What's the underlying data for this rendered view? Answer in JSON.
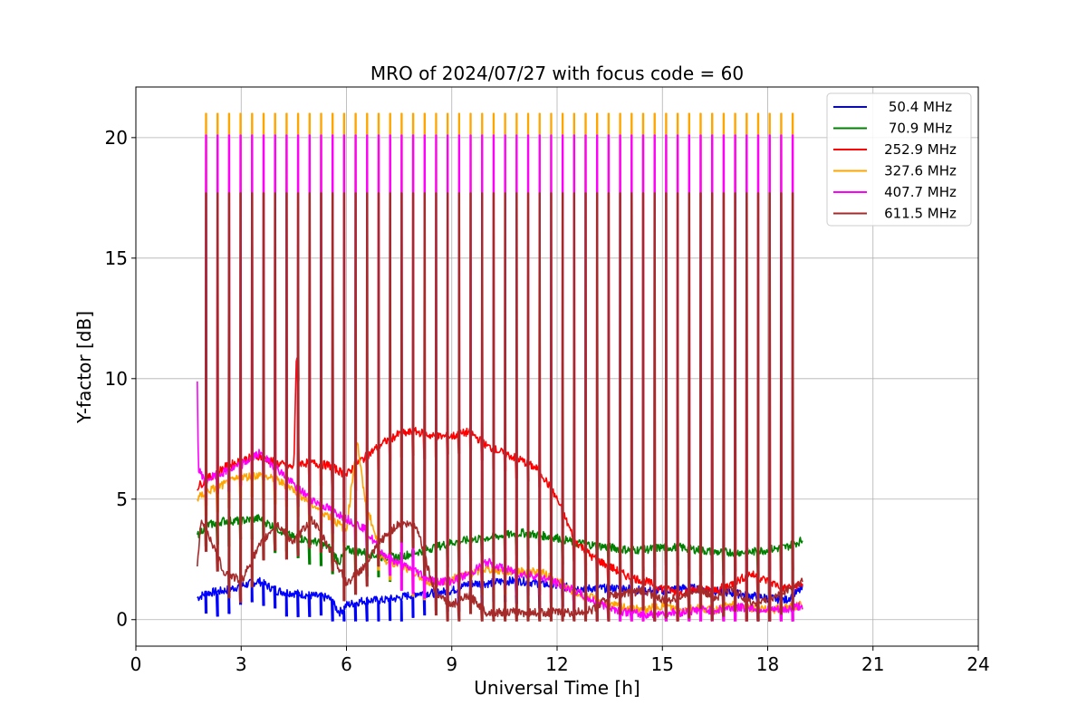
{
  "chart_data": {
    "type": "line",
    "title": "MRO of 2024/07/27 with focus code = 60",
    "xlabel": "Universal Time [h]",
    "ylabel": "Y-factor [dB]",
    "xlim": [
      0,
      24
    ],
    "ylim": [
      -1.1,
      22.1
    ],
    "xticks": [
      0,
      3,
      6,
      9,
      12,
      15,
      18,
      21,
      24
    ],
    "yticks": [
      0,
      5,
      10,
      15,
      20
    ],
    "grid": true,
    "legend_position": "top-right",
    "calibration_pulses": {
      "start_h": 1.98,
      "end_h": 19.02,
      "count": 53,
      "peaks_dB": {
        "327.6 MHz": 21.0,
        "407.7 MHz": 20.1,
        "611.5 MHz": 17.7
      }
    },
    "series": [
      {
        "name": "50.4 MHz",
        "color": "#0000ff",
        "points": [
          [
            1.75,
            0.9
          ],
          [
            2.0,
            1.1
          ],
          [
            2.5,
            1.2
          ],
          [
            3.0,
            1.4
          ],
          [
            3.5,
            1.6
          ],
          [
            4.0,
            1.2
          ],
          [
            4.5,
            1.1
          ],
          [
            5.0,
            1.0
          ],
          [
            5.5,
            0.9
          ],
          [
            5.8,
            0.3
          ],
          [
            6.0,
            0.6
          ],
          [
            6.5,
            0.8
          ],
          [
            7.0,
            0.8
          ],
          [
            7.5,
            0.9
          ],
          [
            8.0,
            1.1
          ],
          [
            8.5,
            1.1
          ],
          [
            9.0,
            1.2
          ],
          [
            9.5,
            1.5
          ],
          [
            10.0,
            1.5
          ],
          [
            10.5,
            1.6
          ],
          [
            11.0,
            1.6
          ],
          [
            11.5,
            1.5
          ],
          [
            12.0,
            1.4
          ],
          [
            12.5,
            1.3
          ],
          [
            13.0,
            1.3
          ],
          [
            13.5,
            1.3
          ],
          [
            14.0,
            1.3
          ],
          [
            14.5,
            1.2
          ],
          [
            15.0,
            1.2
          ],
          [
            15.5,
            1.3
          ],
          [
            16.0,
            1.3
          ],
          [
            16.5,
            1.2
          ],
          [
            17.0,
            1.1
          ],
          [
            17.5,
            1.0
          ],
          [
            18.0,
            0.9
          ],
          [
            18.5,
            0.8
          ],
          [
            19.0,
            1.3
          ]
        ]
      },
      {
        "name": "70.9 MHz",
        "color": "#008000",
        "points": [
          [
            1.75,
            3.5
          ],
          [
            2.0,
            3.9
          ],
          [
            2.5,
            4.1
          ],
          [
            3.0,
            4.1
          ],
          [
            3.5,
            4.2
          ],
          [
            4.0,
            3.8
          ],
          [
            4.5,
            3.4
          ],
          [
            5.0,
            3.3
          ],
          [
            5.5,
            3.0
          ],
          [
            5.8,
            2.4
          ],
          [
            6.0,
            2.9
          ],
          [
            6.5,
            2.8
          ],
          [
            7.0,
            2.6
          ],
          [
            7.5,
            2.6
          ],
          [
            8.0,
            2.8
          ],
          [
            8.5,
            3.0
          ],
          [
            9.0,
            3.2
          ],
          [
            9.5,
            3.3
          ],
          [
            10.0,
            3.4
          ],
          [
            10.5,
            3.5
          ],
          [
            11.0,
            3.6
          ],
          [
            11.5,
            3.5
          ],
          [
            12.0,
            3.4
          ],
          [
            12.5,
            3.2
          ],
          [
            13.0,
            3.1
          ],
          [
            13.5,
            3.0
          ],
          [
            14.0,
            2.9
          ],
          [
            14.5,
            2.9
          ],
          [
            15.0,
            3.0
          ],
          [
            15.5,
            3.0
          ],
          [
            16.0,
            2.9
          ],
          [
            16.5,
            2.8
          ],
          [
            17.0,
            2.8
          ],
          [
            17.5,
            2.8
          ],
          [
            18.0,
            2.9
          ],
          [
            18.5,
            3.0
          ],
          [
            19.0,
            3.3
          ]
        ]
      },
      {
        "name": "252.9 MHz",
        "color": "#ff0000",
        "points": [
          [
            1.75,
            5.5
          ],
          [
            2.0,
            5.8
          ],
          [
            2.5,
            6.3
          ],
          [
            3.0,
            6.6
          ],
          [
            3.5,
            6.8
          ],
          [
            4.0,
            6.5
          ],
          [
            4.5,
            6.3
          ],
          [
            4.58,
            11.4
          ],
          [
            4.65,
            6.5
          ],
          [
            5.0,
            6.5
          ],
          [
            5.5,
            6.4
          ],
          [
            6.0,
            6.0
          ],
          [
            6.3,
            6.5
          ],
          [
            6.5,
            6.7
          ],
          [
            7.0,
            7.3
          ],
          [
            7.5,
            7.7
          ],
          [
            8.0,
            7.8
          ],
          [
            8.5,
            7.6
          ],
          [
            9.0,
            7.6
          ],
          [
            9.5,
            7.8
          ],
          [
            10.0,
            7.2
          ],
          [
            10.5,
            6.9
          ],
          [
            11.0,
            6.6
          ],
          [
            11.5,
            6.2
          ],
          [
            12.0,
            5.0
          ],
          [
            12.5,
            3.3
          ],
          [
            13.0,
            2.6
          ],
          [
            13.5,
            2.2
          ],
          [
            14.0,
            1.8
          ],
          [
            14.5,
            1.6
          ],
          [
            15.0,
            1.3
          ],
          [
            15.5,
            1.1
          ],
          [
            16.0,
            1.3
          ],
          [
            16.5,
            1.2
          ],
          [
            17.0,
            1.5
          ],
          [
            17.5,
            1.9
          ],
          [
            18.0,
            1.6
          ],
          [
            18.5,
            1.3
          ],
          [
            19.0,
            1.5
          ]
        ]
      },
      {
        "name": "327.6 MHz",
        "color": "#ffa500",
        "points": [
          [
            1.75,
            5.0
          ],
          [
            2.0,
            5.3
          ],
          [
            2.5,
            5.6
          ],
          [
            3.0,
            5.9
          ],
          [
            3.5,
            6.0
          ],
          [
            4.0,
            5.8
          ],
          [
            4.5,
            5.4
          ],
          [
            5.0,
            4.8
          ],
          [
            5.5,
            4.3
          ],
          [
            6.0,
            3.7
          ],
          [
            6.3,
            7.5
          ],
          [
            6.5,
            5.2
          ],
          [
            7.0,
            2.5
          ],
          [
            7.5,
            2.3
          ],
          [
            8.0,
            1.8
          ],
          [
            8.5,
            1.5
          ],
          [
            9.0,
            1.7
          ],
          [
            9.5,
            1.9
          ],
          [
            10.0,
            2.1
          ],
          [
            10.5,
            2.0
          ],
          [
            11.0,
            2.0
          ],
          [
            11.5,
            2.0
          ],
          [
            12.0,
            1.6
          ],
          [
            12.5,
            1.1
          ],
          [
            13.0,
            0.9
          ],
          [
            13.5,
            0.6
          ],
          [
            14.0,
            0.5
          ],
          [
            14.5,
            0.4
          ],
          [
            15.0,
            0.6
          ],
          [
            15.5,
            0.4
          ],
          [
            16.0,
            0.5
          ],
          [
            16.5,
            0.4
          ],
          [
            17.0,
            0.6
          ],
          [
            17.5,
            0.5
          ],
          [
            18.0,
            0.4
          ],
          [
            18.5,
            0.5
          ],
          [
            19.0,
            0.6
          ]
        ]
      },
      {
        "name": "407.7 MHz",
        "color": "#ff00ff",
        "points": [
          [
            1.75,
            9.8
          ],
          [
            1.78,
            6.2
          ],
          [
            2.0,
            5.8
          ],
          [
            2.5,
            6.1
          ],
          [
            3.0,
            6.4
          ],
          [
            3.5,
            6.9
          ],
          [
            4.0,
            6.3
          ],
          [
            4.5,
            5.6
          ],
          [
            5.0,
            5.0
          ],
          [
            5.5,
            4.6
          ],
          [
            6.0,
            4.2
          ],
          [
            6.5,
            3.8
          ],
          [
            7.0,
            2.8
          ],
          [
            7.5,
            2.3
          ],
          [
            8.0,
            2.0
          ],
          [
            8.5,
            1.6
          ],
          [
            9.0,
            1.6
          ],
          [
            9.5,
            1.9
          ],
          [
            10.0,
            2.4
          ],
          [
            10.5,
            2.1
          ],
          [
            11.0,
            1.9
          ],
          [
            11.5,
            1.8
          ],
          [
            12.0,
            1.5
          ],
          [
            12.5,
            1.2
          ],
          [
            13.0,
            0.8
          ],
          [
            13.5,
            0.5
          ],
          [
            14.0,
            0.3
          ],
          [
            14.5,
            0.2
          ],
          [
            15.0,
            0.3
          ],
          [
            15.5,
            0.3
          ],
          [
            16.0,
            0.4
          ],
          [
            16.5,
            0.4
          ],
          [
            17.0,
            0.5
          ],
          [
            17.5,
            0.5
          ],
          [
            18.0,
            0.4
          ],
          [
            18.5,
            0.4
          ],
          [
            19.0,
            0.6
          ]
        ]
      },
      {
        "name": "611.5 MHz",
        "color": "#a52a2a",
        "points": [
          [
            1.75,
            2.1
          ],
          [
            1.85,
            4.0
          ],
          [
            2.0,
            3.8
          ],
          [
            2.5,
            2.0
          ],
          [
            3.0,
            1.6
          ],
          [
            3.5,
            3.0
          ],
          [
            4.0,
            4.0
          ],
          [
            4.5,
            3.2
          ],
          [
            5.0,
            4.2
          ],
          [
            5.5,
            3.0
          ],
          [
            6.0,
            1.5
          ],
          [
            6.5,
            2.2
          ],
          [
            7.0,
            3.3
          ],
          [
            7.5,
            4.0
          ],
          [
            8.0,
            3.9
          ],
          [
            8.5,
            1.2
          ],
          [
            9.0,
            0.6
          ],
          [
            9.5,
            1.0
          ],
          [
            10.0,
            0.3
          ],
          [
            10.5,
            0.3
          ],
          [
            11.0,
            0.3
          ],
          [
            11.5,
            0.3
          ],
          [
            12.0,
            0.3
          ],
          [
            12.5,
            0.3
          ],
          [
            13.0,
            0.4
          ],
          [
            13.5,
            1.0
          ],
          [
            14.0,
            1.1
          ],
          [
            14.5,
            1.2
          ],
          [
            15.0,
            0.8
          ],
          [
            15.5,
            0.9
          ],
          [
            16.0,
            1.3
          ],
          [
            16.5,
            0.9
          ],
          [
            17.0,
            1.3
          ],
          [
            17.5,
            0.7
          ],
          [
            18.0,
            0.8
          ],
          [
            18.5,
            1.2
          ],
          [
            19.0,
            1.6
          ]
        ]
      }
    ]
  }
}
